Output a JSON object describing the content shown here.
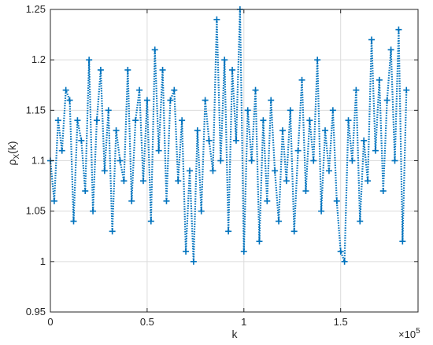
{
  "chart_data": {
    "type": "line",
    "title": "",
    "xlabel": "k",
    "ylabel": "ρX(k)",
    "ylabel_base": "ρ",
    "ylabel_sub": "X",
    "ylabel_tail": "(k)",
    "x_exponent_label": "×10",
    "x_exponent_power": "5",
    "xlim": [
      0,
      190000
    ],
    "ylim": [
      0.95,
      1.25
    ],
    "x_ticks": [
      0,
      50000,
      100000,
      150000
    ],
    "x_tick_labels": [
      "0",
      "0.5",
      "1",
      "1.5"
    ],
    "y_ticks": [
      0.95,
      1.0,
      1.05,
      1.1,
      1.15,
      1.2,
      1.25
    ],
    "y_tick_labels": [
      "0.95",
      "1",
      "1.05",
      "1.1",
      "1.15",
      "1.2",
      "1.25"
    ],
    "grid": true,
    "legend": "none",
    "line_style": "dotted",
    "marker": "+",
    "series": [
      {
        "color": "#0072BD",
        "x": [
          0,
          2000,
          4000,
          6000,
          8000,
          10000,
          12000,
          14000,
          16000,
          18000,
          20000,
          22000,
          24000,
          26000,
          28000,
          30000,
          32000,
          34000,
          36000,
          38000,
          40000,
          42000,
          44000,
          46000,
          48000,
          50000,
          52000,
          54000,
          56000,
          58000,
          60000,
          62000,
          64000,
          66000,
          68000,
          70000,
          72000,
          74000,
          76000,
          78000,
          80000,
          82000,
          84000,
          86000,
          88000,
          90000,
          92000,
          94000,
          96000,
          98000,
          100000,
          102000,
          104000,
          106000,
          108000,
          110000,
          112000,
          114000,
          116000,
          118000,
          120000,
          122000,
          124000,
          126000,
          128000,
          130000,
          132000,
          134000,
          136000,
          138000,
          140000,
          142000,
          144000,
          146000,
          148000,
          150000,
          152000,
          154000,
          156000,
          158000,
          160000,
          162000,
          164000,
          166000,
          168000,
          170000,
          172000,
          174000,
          176000,
          178000,
          180000,
          182000,
          184000
        ],
        "values": [
          1.1,
          1.06,
          1.14,
          1.11,
          1.17,
          1.16,
          1.04,
          1.14,
          1.12,
          1.07,
          1.2,
          1.05,
          1.14,
          1.19,
          1.09,
          1.15,
          1.03,
          1.13,
          1.1,
          1.08,
          1.19,
          1.06,
          1.14,
          1.17,
          1.08,
          1.16,
          1.04,
          1.21,
          1.11,
          1.19,
          1.06,
          1.16,
          1.17,
          1.08,
          1.14,
          1.01,
          1.09,
          1.0,
          1.13,
          1.05,
          1.16,
          1.12,
          1.09,
          1.24,
          1.1,
          1.2,
          1.03,
          1.19,
          1.12,
          1.25,
          1.01,
          1.15,
          1.1,
          1.17,
          1.02,
          1.14,
          1.06,
          1.16,
          1.09,
          1.04,
          1.13,
          1.08,
          1.15,
          1.03,
          1.11,
          1.18,
          1.07,
          1.14,
          1.1,
          1.2,
          1.05,
          1.13,
          1.09,
          1.15,
          1.06,
          1.01,
          1.0,
          1.14,
          1.1,
          1.17,
          1.04,
          1.12,
          1.08,
          1.22,
          1.11,
          1.18,
          1.07,
          1.16,
          1.21,
          1.1,
          1.23,
          1.02,
          1.17
        ]
      }
    ]
  }
}
